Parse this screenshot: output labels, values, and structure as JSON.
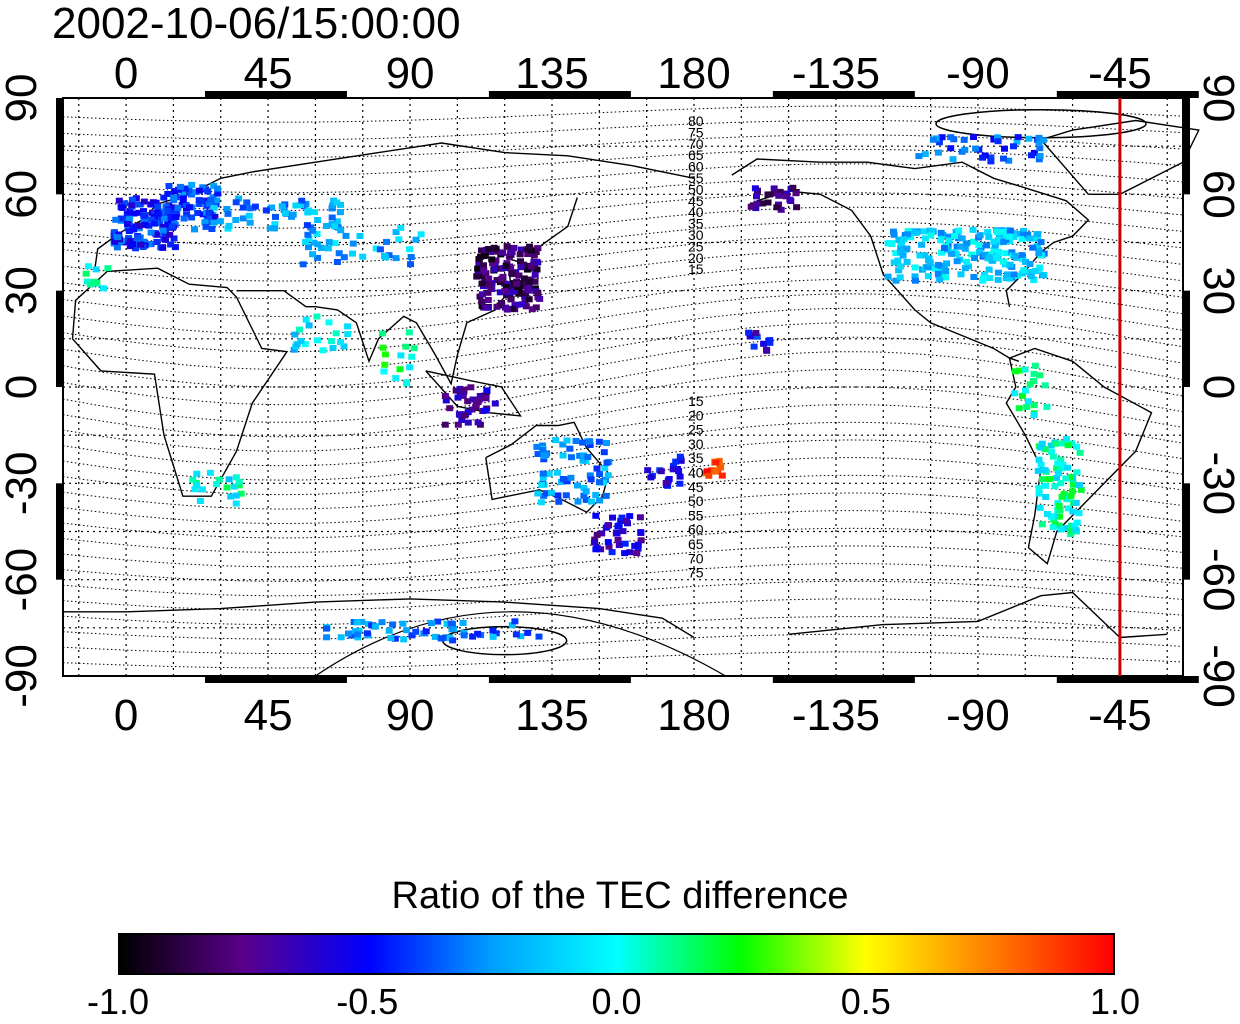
{
  "title": "2002-10-06/15:00:00",
  "map": {
    "x_tick_labels": [
      "0",
      "45",
      "90",
      "135",
      "180",
      "-135",
      "-90",
      "-45"
    ],
    "x_tick_lons": [
      0,
      45,
      90,
      135,
      180,
      225,
      270,
      315
    ],
    "y_tick_labels": [
      "90",
      "60",
      "30",
      "0",
      "-30",
      "-60",
      "-90"
    ],
    "y_tick_lats": [
      90,
      60,
      30,
      0,
      -30,
      -60,
      -90
    ],
    "lon_range": [
      -20,
      335
    ],
    "lat_range": [
      -90,
      90
    ],
    "grid": true,
    "marker_line": {
      "lon": 315,
      "color": "#cc0000"
    },
    "north_contour_labels": [
      "80",
      "75",
      "70",
      "65",
      "60",
      "55",
      "50",
      "45",
      "40",
      "35",
      "30",
      "25",
      "20",
      "15"
    ],
    "south_contour_labels": [
      "15",
      "20",
      "25",
      "30",
      "35",
      "40",
      "45",
      "50",
      "55",
      "60",
      "65",
      "70",
      "75"
    ]
  },
  "colorbar": {
    "title": "Ratio of the TEC difference",
    "tick_labels": [
      "-1.0",
      "-0.5",
      "0.0",
      "0.5",
      "1.0"
    ],
    "range": [
      -1.0,
      1.0
    ],
    "colors": [
      "#000000",
      "#5a008c",
      "#0000ff",
      "#00a0ff",
      "#00ffff",
      "#00ff00",
      "#ffff00",
      "#ff8000",
      "#ff0000"
    ]
  }
}
